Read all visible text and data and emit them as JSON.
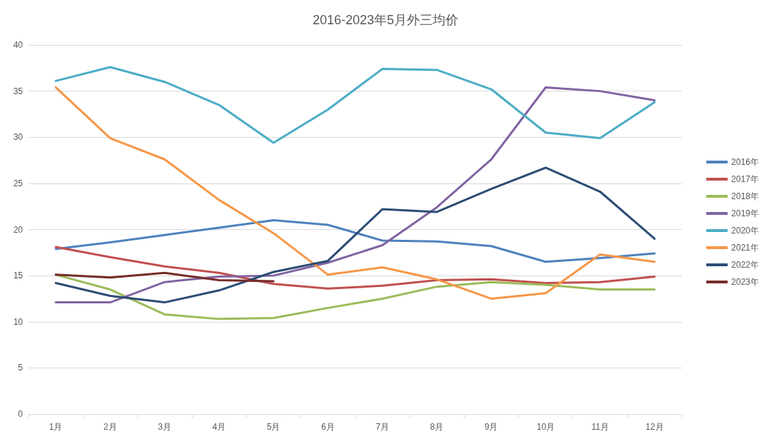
{
  "chart_data": {
    "type": "line",
    "title": "2016-2023年5月外三均价",
    "categories": [
      "1月",
      "2月",
      "3月",
      "4月",
      "5月",
      "6月",
      "7月",
      "8月",
      "9月",
      "10月",
      "11月",
      "12月"
    ],
    "series": [
      {
        "name": "2016年",
        "color": "#4f81bd",
        "values": [
          17.9,
          18.6,
          19.4,
          20.2,
          21.0,
          20.5,
          18.8,
          18.7,
          18.2,
          16.5,
          16.9,
          17.4
        ]
      },
      {
        "name": "2017年",
        "color": "#c0504d",
        "values": [
          18.1,
          17.0,
          16.0,
          15.3,
          14.1,
          13.6,
          13.9,
          14.5,
          14.6,
          14.2,
          14.3,
          14.9
        ]
      },
      {
        "name": "2018年",
        "color": "#9bbb59",
        "values": [
          15.1,
          13.5,
          10.8,
          10.3,
          10.4,
          11.5,
          12.5,
          13.8,
          14.3,
          14.0,
          13.5,
          13.5
        ]
      },
      {
        "name": "2019年",
        "color": "#8064a2",
        "values": [
          12.1,
          12.1,
          14.3,
          14.9,
          15.0,
          16.4,
          18.3,
          22.4,
          27.6,
          35.4,
          35.0,
          34.0
        ]
      },
      {
        "name": "2020年",
        "color": "#4bacc6",
        "values": [
          36.1,
          37.6,
          36.0,
          33.5,
          29.4,
          33.0,
          37.4,
          37.3,
          35.2,
          30.5,
          29.9,
          33.8
        ]
      },
      {
        "name": "2021年",
        "color": "#f79646",
        "values": [
          35.4,
          29.9,
          27.6,
          23.2,
          19.6,
          15.1,
          15.9,
          14.6,
          12.5,
          13.1,
          17.3,
          16.5
        ]
      },
      {
        "name": "2022年",
        "color": "#2c4d75",
        "values": [
          14.2,
          12.8,
          12.1,
          13.4,
          15.4,
          16.6,
          22.2,
          21.9,
          24.4,
          26.7,
          24.1,
          19.0
        ]
      },
      {
        "name": "2023年",
        "color": "#772c2a",
        "values": [
          15.1,
          14.8,
          15.3,
          14.5,
          14.4,
          null,
          null,
          null,
          null,
          null,
          null,
          null
        ]
      }
    ],
    "ylim": [
      0,
      40
    ],
    "yticks": [
      0,
      5,
      10,
      15,
      20,
      25,
      30,
      35,
      40
    ],
    "grid": "y",
    "legend": "right",
    "marker": "none",
    "line_style": "solid"
  }
}
